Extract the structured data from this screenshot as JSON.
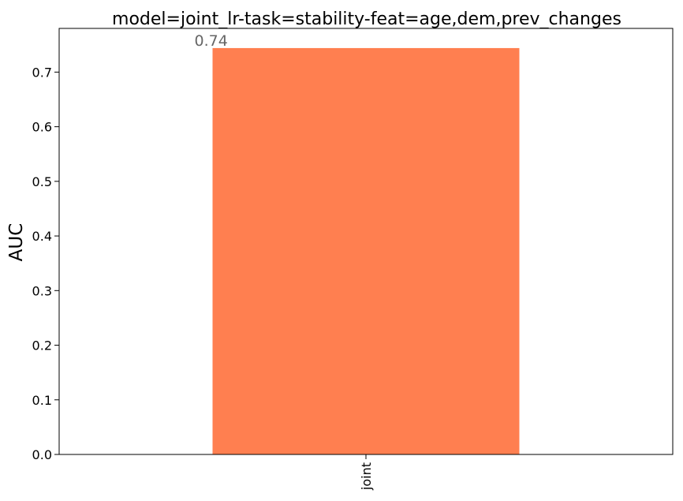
{
  "chart_data": {
    "type": "bar",
    "title": "model=joint_lr-task=stability-feat=age,dem,prev_changes",
    "xlabel": "",
    "ylabel": "AUC",
    "categories": [
      "joint"
    ],
    "values": [
      0.744
    ],
    "data_labels": [
      "0.74"
    ],
    "ylim": [
      0,
      0.78
    ],
    "yticks": [
      0.0,
      0.1,
      0.2,
      0.3,
      0.4,
      0.5,
      0.6,
      0.7
    ],
    "ytick_labels": [
      "0.0",
      "0.1",
      "0.2",
      "0.3",
      "0.4",
      "0.5",
      "0.6",
      "0.7"
    ],
    "grid": false,
    "legend": "none",
    "bar_color": "#ff7f50",
    "data_label_color": "#666666",
    "x_tick_rotation": "vertical"
  }
}
